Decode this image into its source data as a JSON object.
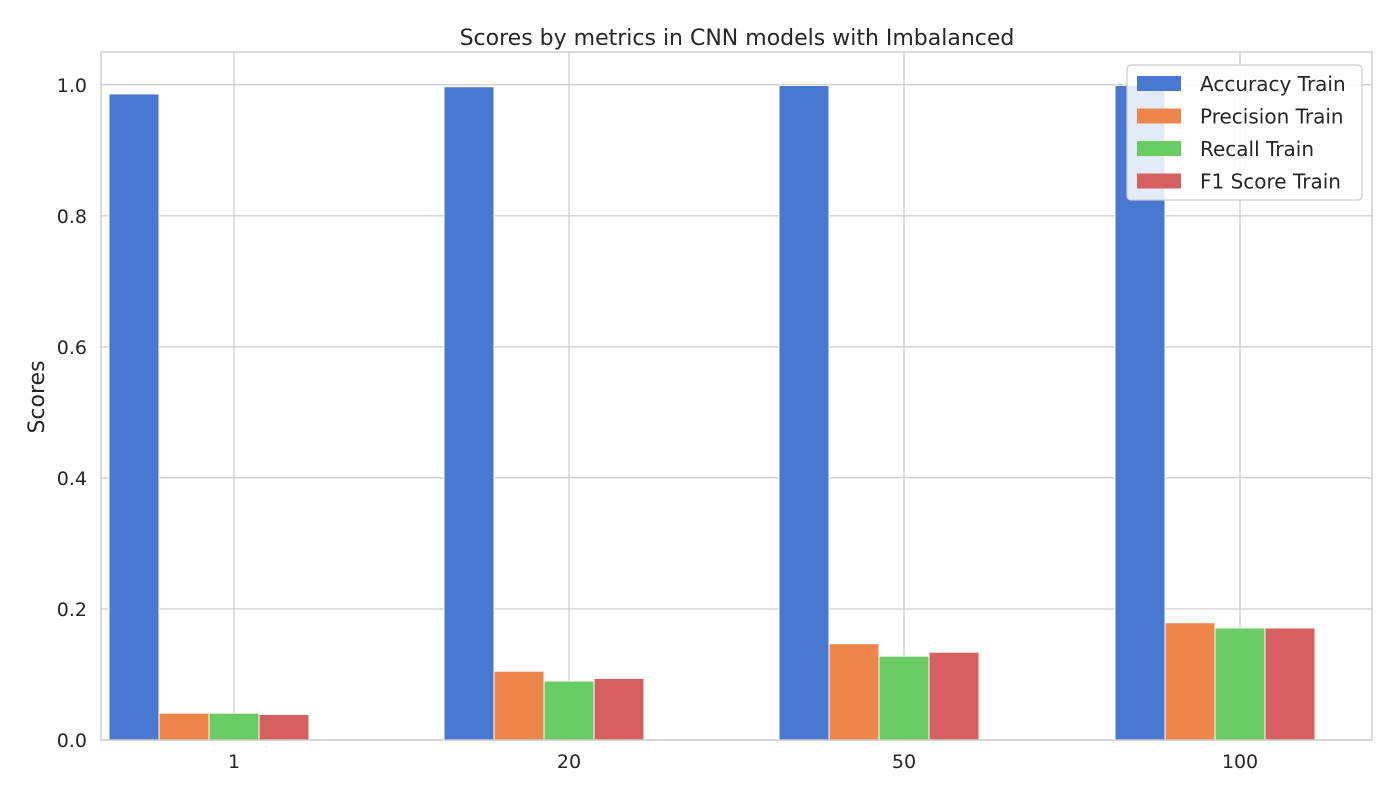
{
  "chart_data": {
    "type": "bar",
    "title": "Scores by metrics in CNN models with Imbalanced",
    "xlabel": "",
    "ylabel": "Scores",
    "categories": [
      "1",
      "20",
      "50",
      "100"
    ],
    "ylim": [
      0,
      1.05
    ],
    "yticks": [
      0.0,
      0.2,
      0.4,
      0.6,
      0.8,
      1.0
    ],
    "ytick_labels": [
      "0.0",
      "0.2",
      "0.4",
      "0.6",
      "0.8",
      "1.0"
    ],
    "grid": true,
    "legend_position": "top-right",
    "series": [
      {
        "name": "Accuracy Train",
        "color": "#4878d0",
        "values": [
          0.986,
          0.997,
          0.999,
          0.999
        ]
      },
      {
        "name": "Precision Train",
        "color": "#ee854a",
        "values": [
          0.041,
          0.105,
          0.147,
          0.179
        ]
      },
      {
        "name": "Recall Train",
        "color": "#6acc64",
        "values": [
          0.041,
          0.09,
          0.128,
          0.171
        ]
      },
      {
        "name": "F1 Score Train",
        "color": "#d65f5f",
        "values": [
          0.039,
          0.094,
          0.134,
          0.171
        ]
      }
    ]
  }
}
